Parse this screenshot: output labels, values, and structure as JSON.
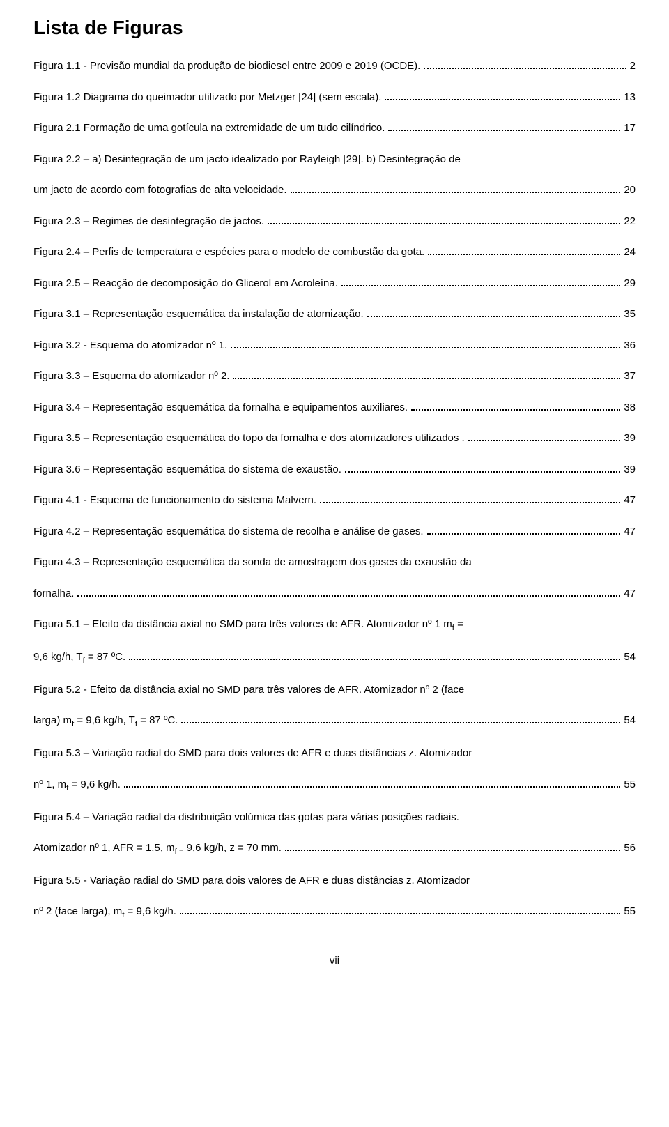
{
  "title": "Lista de Figuras",
  "footer": "vii",
  "entries": [
    {
      "pre": "",
      "tail": "Figura 1.1 - Previsão mundial da produção de biodiesel entre 2009 e 2019 (OCDE). ",
      "page": "2"
    },
    {
      "pre": "",
      "tail": "Figura 1.2 Diagrama do queimador utilizado por Metzger [24] (sem escala). ",
      "page": "13"
    },
    {
      "pre": "",
      "tail": "Figura 2.1 Formação de uma gotícula na extremidade de um tudo cilíndrico. ",
      "page": "17"
    },
    {
      "pre": "Figura 2.2 – a) Desintegração de um jacto idealizado por Rayleigh [29]. b) Desintegração de",
      "tail": "um jacto de acordo com fotografias de alta velocidade. ",
      "page": "20"
    },
    {
      "pre": "",
      "tail": "Figura 2.3 – Regimes de desintegração de jactos. ",
      "page": "22"
    },
    {
      "pre": "",
      "tail": "Figura 2.4 – Perfis de temperatura e espécies para o modelo de combustão da gota. ",
      "page": "24"
    },
    {
      "pre": "",
      "tail": "Figura 2.5 – Reacção de decomposição do Glicerol em Acroleína. ",
      "page": "29"
    },
    {
      "pre": "",
      "tail": "Figura 3.1 – Representação esquemática da instalação de atomização. ",
      "page": "35"
    },
    {
      "pre": "",
      "tail": "Figura 3.2 - Esquema do atomizador nº 1. ",
      "page": "36"
    },
    {
      "pre": "",
      "tail": "Figura 3.3 – Esquema do atomizador nº 2. ",
      "page": "37"
    },
    {
      "pre": "",
      "tail": "Figura 3.4 – Representação esquemática da fornalha e equipamentos auxiliares. ",
      "page": "38"
    },
    {
      "pre": "",
      "tail": "Figura 3.5 – Representação esquemática do topo da fornalha e dos atomizadores utilizados .",
      "page": "39"
    },
    {
      "pre": "",
      "tail": "Figura 3.6 – Representação esquemática do sistema de exaustão. ",
      "page": "39"
    },
    {
      "pre": "",
      "tail": "Figura 4.1 - Esquema de funcionamento do sistema Malvern. ",
      "page": "47"
    },
    {
      "pre": "",
      "tail": "Figura 4.2 – Representação esquemática do sistema de recolha e análise de gases. ",
      "page": "47"
    },
    {
      "pre": "Figura 4.3 – Representação esquemática da sonda de amostragem dos gases da exaustão da",
      "tail": "fornalha. ",
      "page": "47"
    },
    {
      "pre": "Figura 5.1 – Efeito da distância axial no SMD para três valores de AFR. Atomizador nº 1 m<sub>f</sub> =",
      "tail": "9,6 kg/h, T<sub>f</sub> = 87 ºC. ",
      "page": "54"
    },
    {
      "pre": "Figura 5.2 - Efeito da distância axial no SMD para três valores de AFR. Atomizador nº 2 (face",
      "tail": "larga) m<sub>f</sub> = 9,6 kg/h, T<sub>f</sub> = 87 ºC. ",
      "page": "54"
    },
    {
      "pre": "Figura 5.3 – Variação radial do SMD para dois valores de AFR e duas distâncias z. Atomizador",
      "tail": "nº 1, m<sub>f</sub> = 9,6 kg/h. ",
      "page": "55"
    },
    {
      "pre": "Figura 5.4 – Variação radial da distribuição volúmica das gotas para várias posições radiais.",
      "tail": "Atomizador nº 1, AFR = 1,5, m<sub>f =</sub> 9,6 kg/h, z = 70 mm. ",
      "page": "56"
    },
    {
      "pre": "Figura 5.5 - Variação radial do SMD para dois valores de AFR e duas distâncias z. Atomizador",
      "tail": "nº 2 (face larga), m<sub>f</sub> = 9,6 kg/h. ",
      "page": "55"
    }
  ]
}
